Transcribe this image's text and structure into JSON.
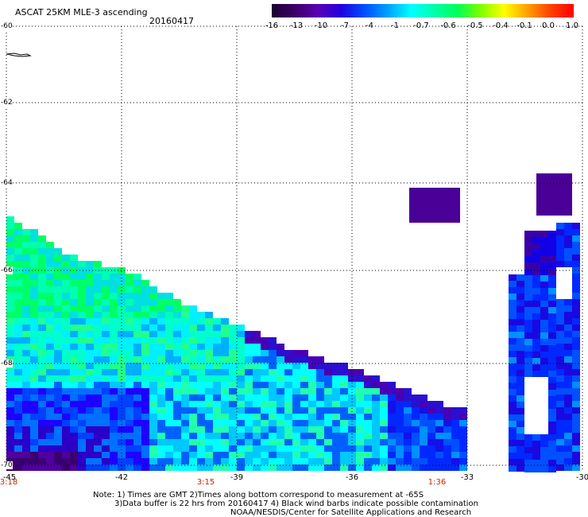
{
  "header": {
    "title": "ASCAT 25KM MLE-3 ascending",
    "date": "20160417"
  },
  "colorbar": {
    "labels": [
      "-16",
      "-13",
      "-10",
      "-7",
      "-4",
      "-1",
      "-0.7",
      "-0.6",
      "-0.5",
      "-0.4",
      "-0.1",
      "0.0",
      "1.0"
    ],
    "colors": [
      "#1a0033",
      "#3c0066",
      "#5a00b4",
      "#2000e0",
      "#0050ff",
      "#00a0ff",
      "#00ffff",
      "#00ffaa",
      "#00ff55",
      "#80ff00",
      "#ffff00",
      "#ffa000",
      "#ff4000",
      "#ff0000"
    ]
  },
  "map": {
    "lon_labels": [
      "-45",
      "-42",
      "-39",
      "-36",
      "-33",
      "-30"
    ],
    "lat_labels": [
      "-60",
      "-62",
      "-64",
      "-66",
      "-68",
      "-70"
    ],
    "time_labels": [
      "3:18",
      "3:15",
      "1:36"
    ]
  },
  "notes": {
    "line1": "Note: 1) Times are GMT 2)Times along bottom correspond to measurement at -65S",
    "line2": "3)Data buffer is 22 hrs from 20160417 4) Black wind barbs indicate possible contamination",
    "line3": "NOAA/NESDIS/Center for Satellite Applications and Research"
  }
}
